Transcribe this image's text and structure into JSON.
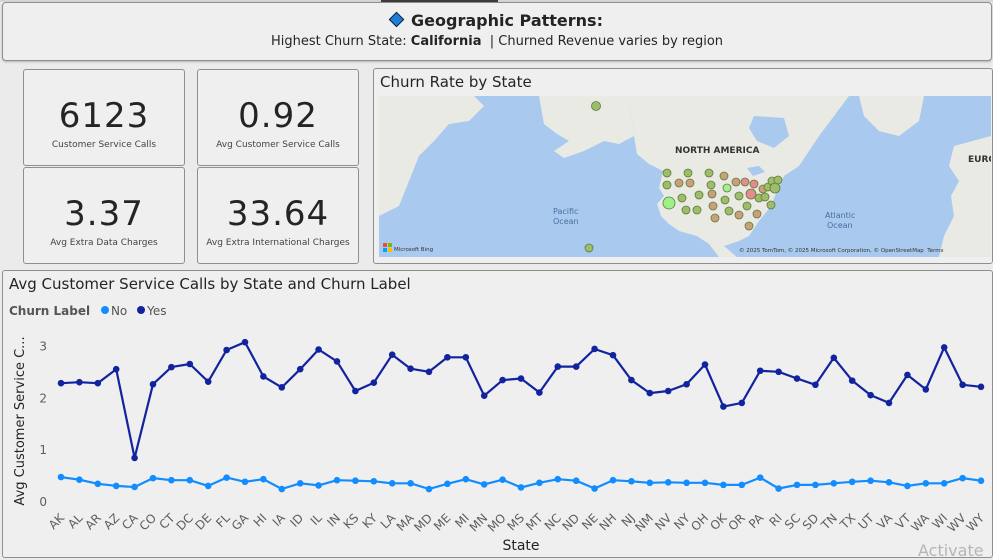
{
  "banner": {
    "title": "Geographic Patterns:",
    "sub_prefix": "Highest Churn State: ",
    "sub_state": "California",
    "sub_suffix": "  | Churned Revenue varies by region"
  },
  "kpis": [
    {
      "value": "6123",
      "label": "Customer Service Calls"
    },
    {
      "value": "0.92",
      "label": "Avg Customer Service Calls"
    },
    {
      "value": "3.37",
      "label": "Avg Extra Data Charges"
    },
    {
      "value": "33.64",
      "label": "Avg Extra International Charges"
    }
  ],
  "map": {
    "title": "Churn Rate by State",
    "labels": {
      "north_america": "NORTH AMERICA",
      "europe": "EURO",
      "pacific": "Pacific\nOcean",
      "atlantic": "Atlantic\nOcean"
    },
    "bing": "Microsoft Bing",
    "credits": "© 2025 TomTom, © 2025 Microsoft Corporation, © OpenStreetMap  Terms",
    "colors": {
      "water": "#a9c9ef",
      "land": "#eaeae4",
      "bubble_low": "#9ebd6b",
      "bubble_mid": "#c9a07a",
      "bubble_high": "#e58b8b"
    }
  },
  "chart_data": {
    "type": "line",
    "title": "Avg Customer Service Calls by State and Churn Label",
    "legend_title": "Churn Label",
    "xlabel": "State",
    "ylabel": "Avg Customer Service C...",
    "ylim": [
      0,
      3.2
    ],
    "yticks": [
      0,
      1,
      2,
      3
    ],
    "categories": [
      "AK",
      "AL",
      "AR",
      "AZ",
      "CA",
      "CO",
      "CT",
      "DC",
      "DE",
      "FL",
      "GA",
      "HI",
      "IA",
      "ID",
      "IL",
      "IN",
      "KS",
      "KY",
      "LA",
      "MA",
      "MD",
      "ME",
      "MI",
      "MN",
      "MO",
      "MS",
      "MT",
      "NC",
      "ND",
      "NE",
      "NH",
      "NJ",
      "NM",
      "NV",
      "NY",
      "OH",
      "OK",
      "OR",
      "PA",
      "RI",
      "SC",
      "SD",
      "TN",
      "TX",
      "UT",
      "VA",
      "VT",
      "WA",
      "WI",
      "WV",
      "WY"
    ],
    "series": [
      {
        "name": "No",
        "color": "#118dff",
        "values": [
          0.48,
          0.43,
          0.35,
          0.31,
          0.29,
          0.46,
          0.42,
          0.42,
          0.31,
          0.47,
          0.39,
          0.44,
          0.25,
          0.36,
          0.32,
          0.42,
          0.41,
          0.4,
          0.36,
          0.36,
          0.25,
          0.35,
          0.44,
          0.34,
          0.43,
          0.28,
          0.37,
          0.44,
          0.41,
          0.26,
          0.42,
          0.4,
          0.37,
          0.38,
          0.37,
          0.37,
          0.33,
          0.33,
          0.47,
          0.26,
          0.33,
          0.33,
          0.36,
          0.39,
          0.41,
          0.38,
          0.31,
          0.36,
          0.36,
          0.46,
          0.41
        ]
      },
      {
        "name": "Yes",
        "color": "#12239e",
        "values": [
          2.29,
          2.31,
          2.29,
          2.56,
          0.85,
          2.27,
          2.6,
          2.66,
          2.32,
          2.93,
          3.08,
          2.42,
          2.21,
          2.56,
          2.94,
          2.71,
          2.14,
          2.3,
          2.84,
          2.57,
          2.51,
          2.79,
          2.79,
          2.05,
          2.35,
          2.38,
          2.11,
          2.61,
          2.61,
          2.95,
          2.83,
          2.35,
          2.1,
          2.14,
          2.27,
          2.65,
          1.84,
          1.91,
          2.53,
          2.51,
          2.38,
          2.26,
          2.78,
          2.34,
          2.06,
          1.91,
          2.45,
          2.17,
          2.98,
          2.26,
          2.22
        ]
      }
    ]
  },
  "watermark": "Activate"
}
